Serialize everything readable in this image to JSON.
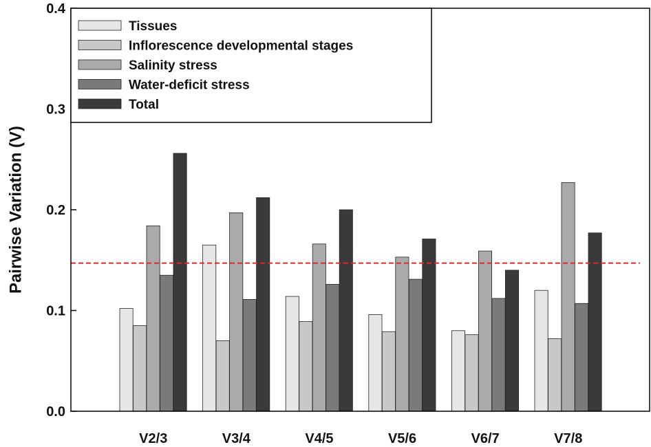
{
  "chart_data": {
    "type": "bar",
    "title": "",
    "xlabel": "",
    "ylabel": "Pairwise Variation (V)",
    "ylim": [
      0,
      0.4
    ],
    "yticks": [
      "0.0",
      "0.1",
      "0.2",
      "0.3",
      "0.4"
    ],
    "categories": [
      "V2/3",
      "V3/4",
      "V4/5",
      "V5/6",
      "V6/7",
      "V7/8"
    ],
    "series": [
      {
        "name": "Tissues",
        "color": "#e6e6e6",
        "values": [
          0.102,
          0.165,
          0.114,
          0.096,
          0.08,
          0.12
        ]
      },
      {
        "name": "Inflorescence developmental stages",
        "color": "#c8c8c8",
        "values": [
          0.085,
          0.07,
          0.089,
          0.079,
          0.076,
          0.072
        ]
      },
      {
        "name": "Salinity stress",
        "color": "#aaaaaa",
        "values": [
          0.184,
          0.197,
          0.166,
          0.153,
          0.159,
          0.227
        ]
      },
      {
        "name": "Water-deficit stress",
        "color": "#7a7a7a",
        "values": [
          0.135,
          0.111,
          0.126,
          0.131,
          0.112,
          0.107
        ]
      },
      {
        "name": "Total",
        "color": "#3a3a3a",
        "values": [
          0.256,
          0.212,
          0.2,
          0.171,
          0.14,
          0.177
        ]
      }
    ],
    "reference_line": {
      "value": 0.147,
      "color": "#e0282a",
      "style": "dashed"
    },
    "legend_position": "top-left",
    "grid": false
  }
}
